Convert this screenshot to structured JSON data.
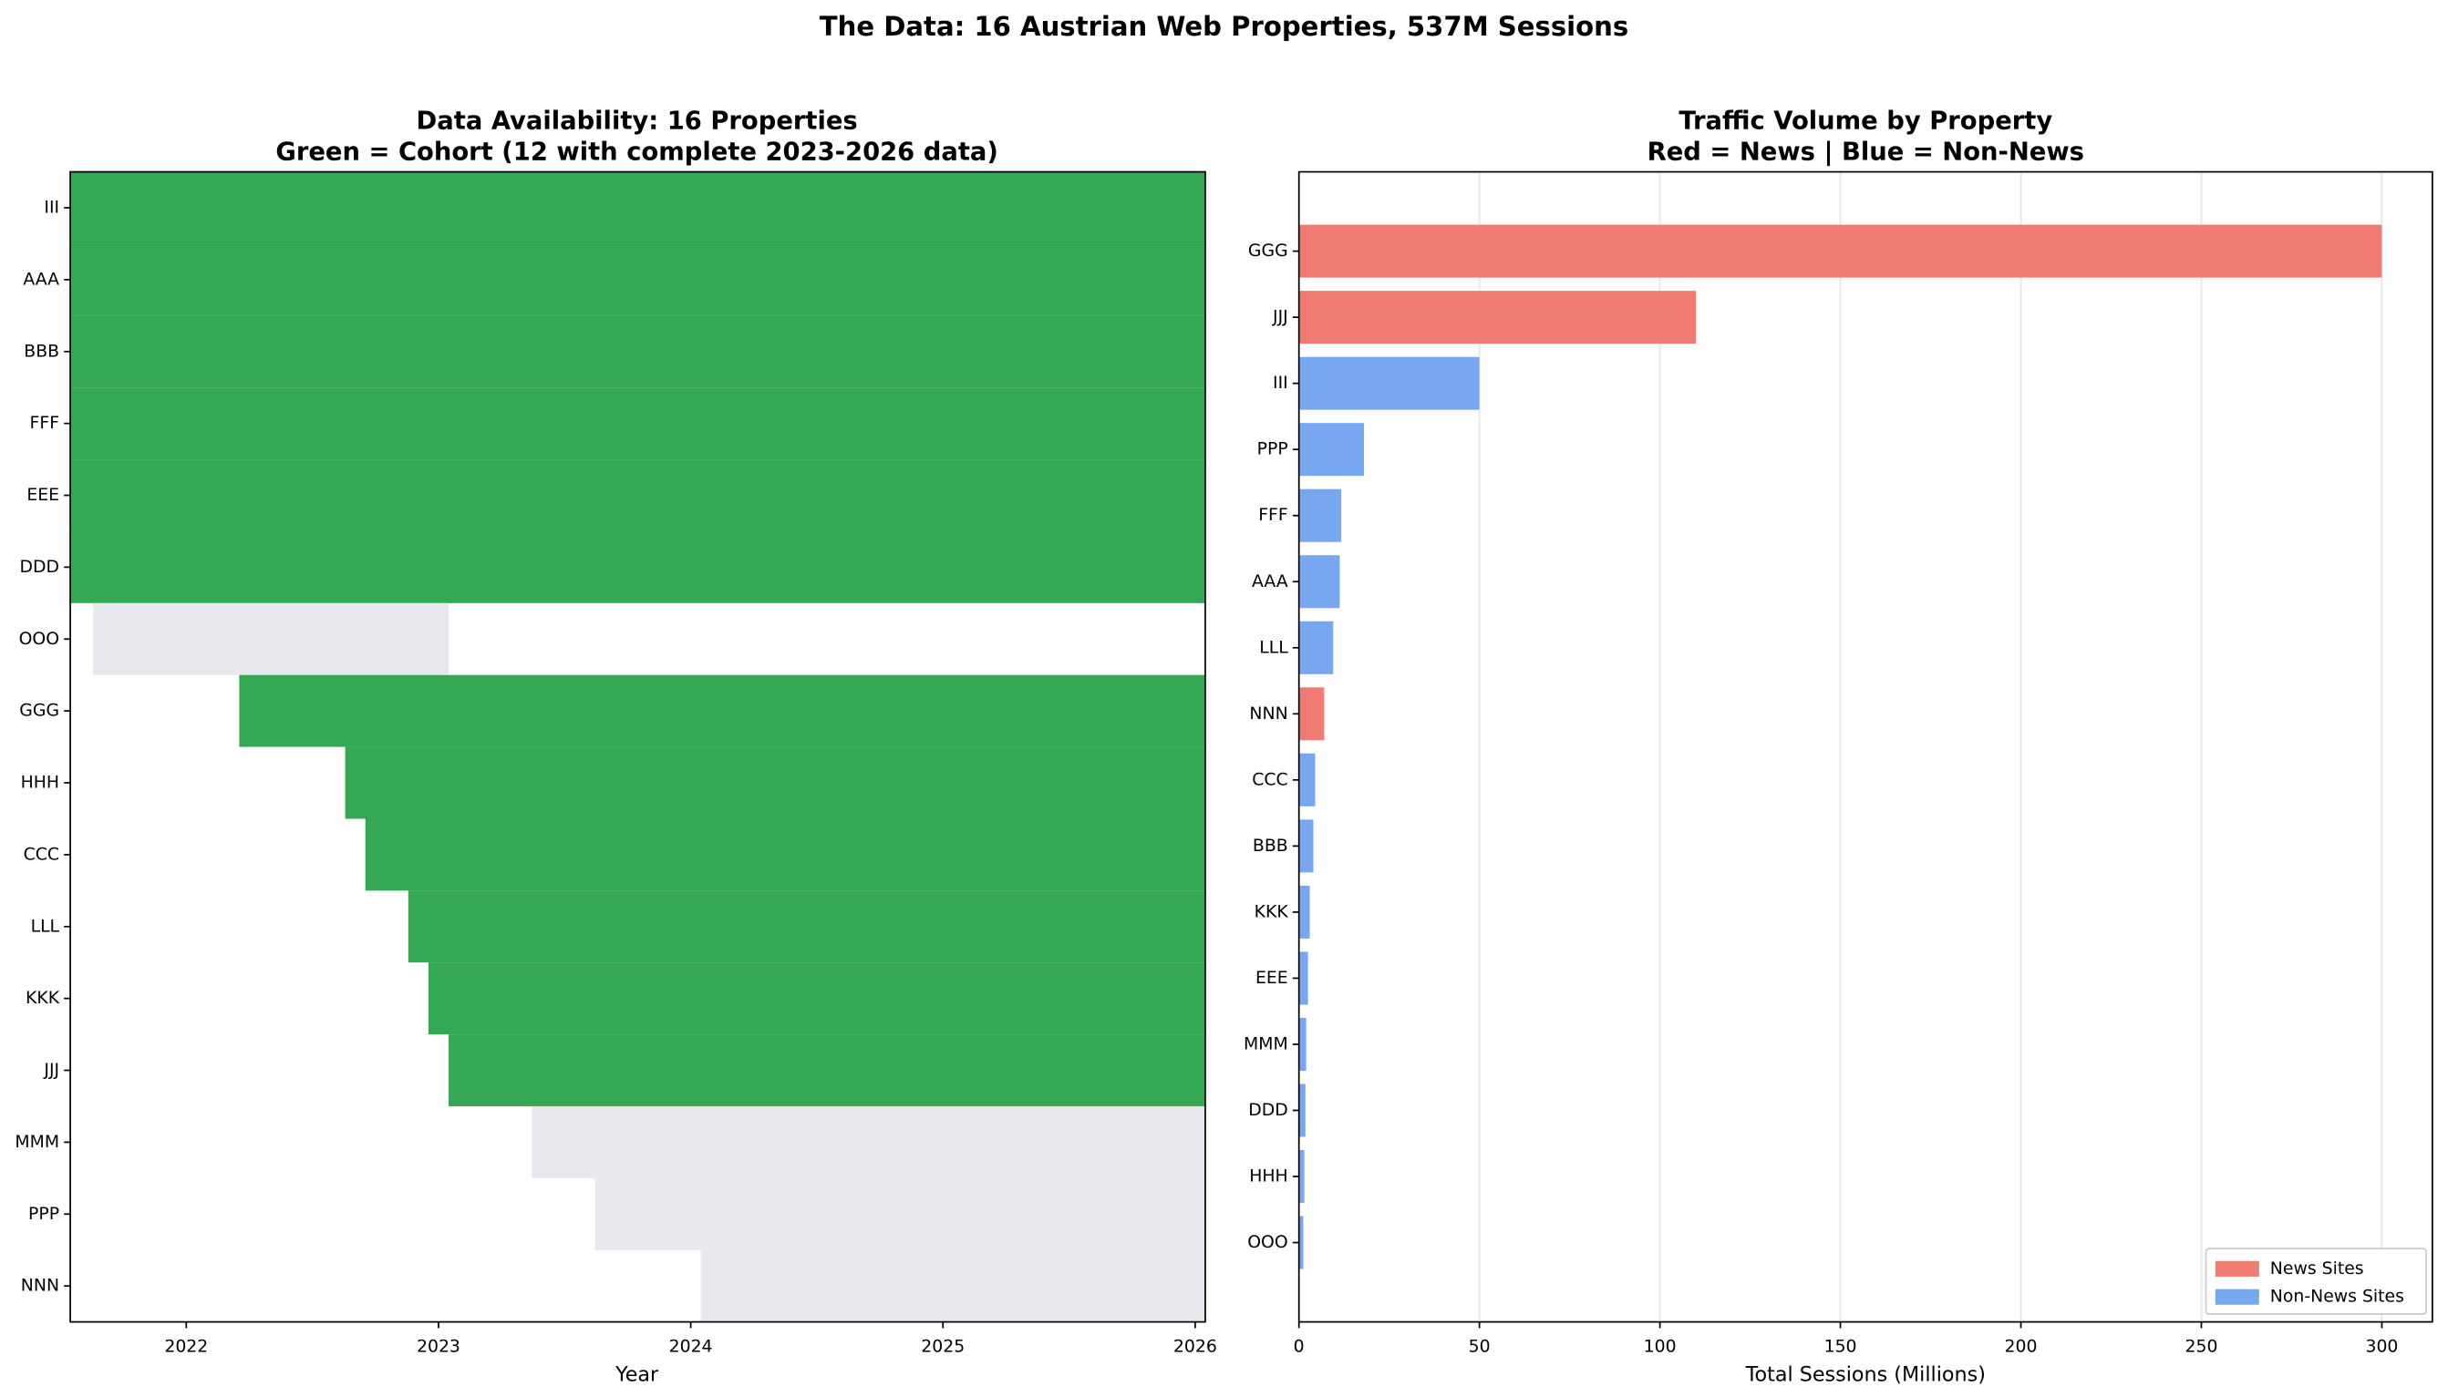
{
  "title": "The Data: 16 Austrian Web Properties, 537M Sessions",
  "chart_data": [
    {
      "type": "range",
      "title": "Data Availability: 16 Properties",
      "subtitle": "Green = Cohort (12 with complete 2023-2026 data)",
      "xlabel": "Year",
      "categories": [
        "III",
        "AAA",
        "BBB",
        "FFF",
        "EEE",
        "DDD",
        "OOO",
        "GGG",
        "HHH",
        "CCC",
        "LLL",
        "KKK",
        "JJJ",
        "MMM",
        "PPP",
        "NNN"
      ],
      "start": [
        2021.54,
        2021.54,
        2021.54,
        2021.54,
        2021.54,
        2021.54,
        2021.63,
        2022.21,
        2022.63,
        2022.71,
        2022.88,
        2022.96,
        2023.04,
        2023.37,
        2023.62,
        2024.04
      ],
      "end": [
        2026.04,
        2026.04,
        2026.04,
        2026.04,
        2026.04,
        2026.04,
        2023.04,
        2026.04,
        2026.04,
        2026.04,
        2026.04,
        2026.04,
        2026.04,
        2026.04,
        2026.04,
        2026.04
      ],
      "colors": [
        "#34a853",
        "#34a853",
        "#34a853",
        "#34a853",
        "#34a853",
        "#34a853",
        "#e8e9ee",
        "#34a853",
        "#34a853",
        "#34a853",
        "#34a853",
        "#34a853",
        "#34a853",
        "#e8e9ee",
        "#e8e9ee",
        "#e8e9ee"
      ],
      "xlim": [
        2021.54,
        2026.04
      ],
      "xticks": [
        2022,
        2023,
        2024,
        2025,
        2026
      ]
    },
    {
      "type": "barh",
      "title": "Traffic Volume by Property",
      "subtitle": "Red = News | Blue = Non-News",
      "xlabel": "Total Sessions (Millions)",
      "categories": [
        "GGG",
        "JJJ",
        "III",
        "PPP",
        "FFF",
        "AAA",
        "LLL",
        "NNN",
        "CCC",
        "BBB",
        "KKK",
        "EEE",
        "MMM",
        "DDD",
        "HHH",
        "OOO"
      ],
      "series": [
        {
          "name": "News Sites",
          "color": "#f07b72",
          "values": [
            300,
            110,
            null,
            null,
            null,
            null,
            null,
            7,
            null,
            null,
            null,
            null,
            null,
            null,
            null,
            null
          ]
        },
        {
          "name": "Non-News Sites",
          "color": "#78a7f2",
          "values": [
            null,
            null,
            50,
            18,
            11.7,
            11.3,
            9.5,
            null,
            4.5,
            4,
            3,
            2.5,
            2,
            1.8,
            1.5,
            1.2
          ]
        }
      ],
      "xlim": [
        0,
        314
      ],
      "xticks": [
        0,
        50,
        100,
        150,
        200,
        250,
        300
      ],
      "grid": true,
      "legend": "lower right"
    }
  ]
}
